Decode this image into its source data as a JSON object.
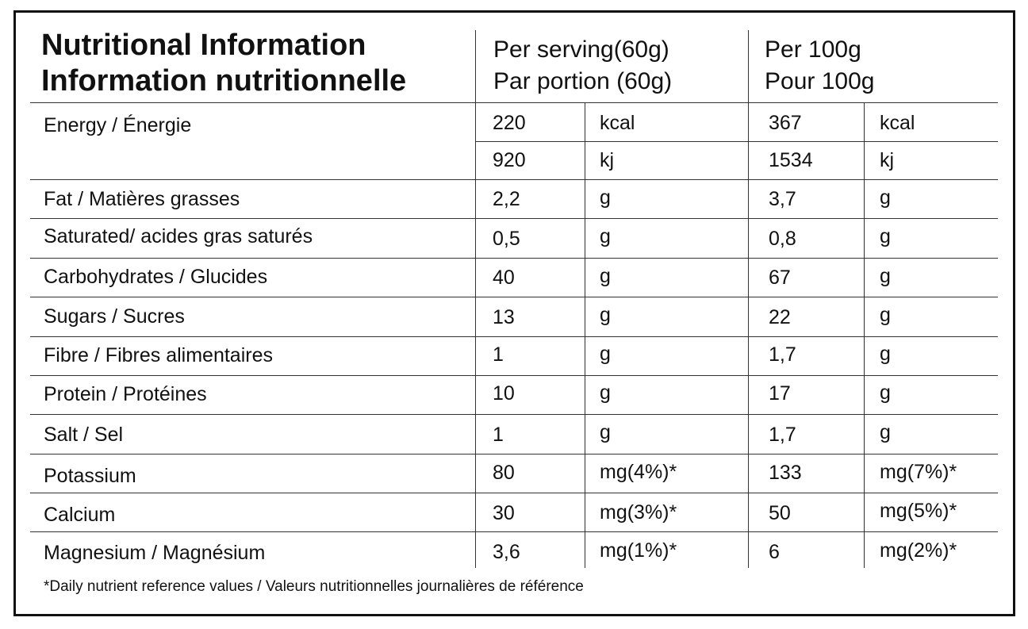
{
  "header": {
    "title_en": "Nutritional Information",
    "title_fr": "Information nutritionnelle",
    "per_serving_en": "Per serving(60g)",
    "per_serving_fr": "Par portion (60g)",
    "per_100_en": "Per 100g",
    "per_100_fr": "Pour 100g"
  },
  "energy": {
    "label": "Energy / Énergie",
    "kcal": {
      "serving": "220",
      "unit_serving": "kcal",
      "per100": "367",
      "unit_per100": "kcal"
    },
    "kj": {
      "serving": "920",
      "unit_serving": "kj",
      "per100": "1534",
      "unit_per100": "kj"
    }
  },
  "rows": [
    {
      "label": "Fat / Matières grasses",
      "serving": "2,2",
      "unit_serving": "g",
      "per100": "3,7",
      "unit_per100": "g"
    },
    {
      "label": "Saturated/ acides gras saturés",
      "serving": "0,5",
      "unit_serving": "g",
      "per100": "0,8",
      "unit_per100": "g"
    },
    {
      "label": "Carbohydrates / Glucides",
      "serving": "40",
      "unit_serving": "g",
      "per100": "67",
      "unit_per100": "g"
    },
    {
      "label": "Sugars / Sucres",
      "serving": "13",
      "unit_serving": "g",
      "per100": "22",
      "unit_per100": "g"
    },
    {
      "label": "Fibre / Fibres alimentaires",
      "serving": "1",
      "unit_serving": "g",
      "per100": "1,7",
      "unit_per100": "g"
    },
    {
      "label": "Protein / Protéines",
      "serving": "10",
      "unit_serving": "g",
      "per100": "17",
      "unit_per100": "g"
    },
    {
      "label": "Salt / Sel",
      "serving": "1",
      "unit_serving": "g",
      "per100": "1,7",
      "unit_per100": "g"
    },
    {
      "label": "Potassium",
      "serving": "80",
      "unit_serving": "mg(4%)*",
      "per100": "133",
      "unit_per100": "mg(7%)*"
    },
    {
      "label": "Calcium",
      "serving": "30",
      "unit_serving": "mg(3%)*",
      "per100": "50",
      "unit_per100": "mg(5%)*"
    },
    {
      "label": "Magnesium / Magnésium",
      "serving": "3,6",
      "unit_serving": "mg(1%)*",
      "per100": "6",
      "unit_per100": "mg(2%)*"
    }
  ],
  "footnote": "*Daily nutrient reference values / Valeurs nutritionnelles journalières de référence"
}
